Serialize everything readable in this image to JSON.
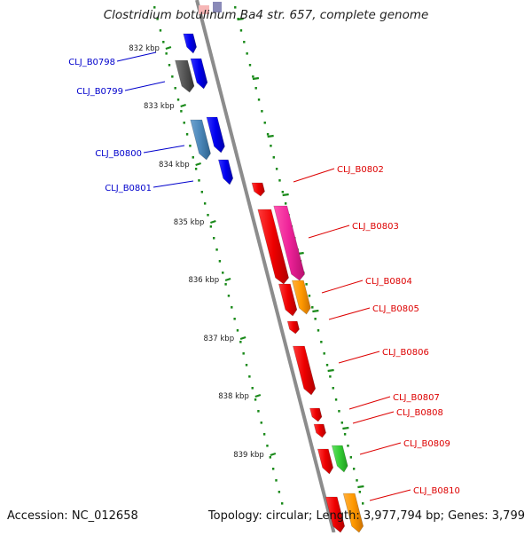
{
  "title": "Clostridium botulinum Ba4 str. 657, complete genome",
  "footer": {
    "accession": "Accession: NC_012658",
    "summary": "Topology: circular; Length: 3,977,794 bp; Genes: 3,799"
  },
  "colors": {
    "backbone": "#8c8c8c",
    "tick": "#1a8a1a",
    "label_left": "#0000cc",
    "label_right": "#dd0000"
  },
  "ticks": [
    "832 kbp",
    "833 kbp",
    "834 kbp",
    "835 kbp",
    "836 kbp",
    "837 kbp",
    "838 kbp",
    "839 kbp"
  ],
  "genes_left": [
    {
      "id": "CLJ_B0798",
      "color": "#555555"
    },
    {
      "id": "CLJ_B0799",
      "color": "#0000ee"
    },
    {
      "id": "CLJ_B0800",
      "color": "#4a86b8"
    },
    {
      "id": "CLJ_B0801",
      "color": "#0000ee"
    }
  ],
  "genes_right": [
    {
      "id": "CLJ_B0802",
      "color": "#ee0000"
    },
    {
      "id": "CLJ_B0803",
      "color": "#ee0000"
    },
    {
      "id": "CLJ_B0804",
      "color": "#ee0000"
    },
    {
      "id": "CLJ_B0805",
      "color": "#ee0000"
    },
    {
      "id": "CLJ_B0806",
      "color": "#ee0000"
    },
    {
      "id": "CLJ_B0807",
      "color": "#ee0000"
    },
    {
      "id": "CLJ_B0808",
      "color": "#ee0000"
    },
    {
      "id": "CLJ_B0809",
      "color": "#ee0000"
    },
    {
      "id": "CLJ_B0810",
      "color": "#ee0000"
    }
  ]
}
